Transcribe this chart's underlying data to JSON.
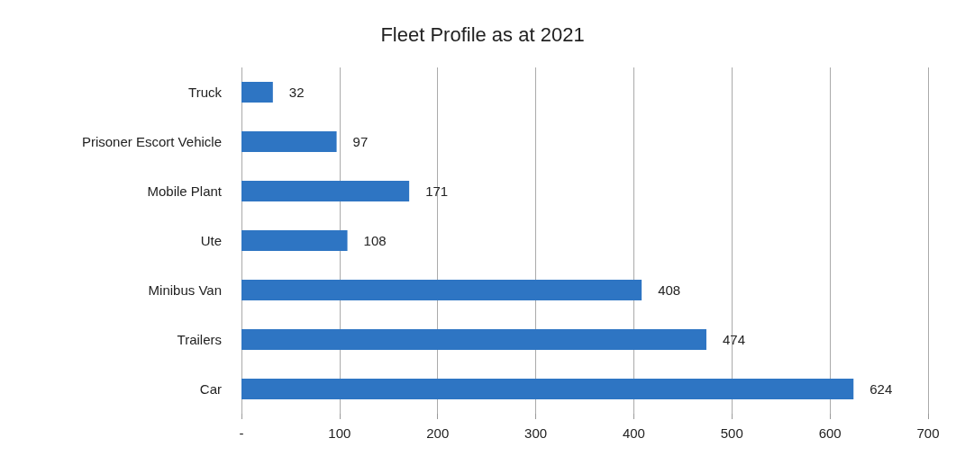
{
  "chart_data": {
    "type": "bar",
    "orientation": "horizontal",
    "title": "Fleet Profile as at 2021",
    "categories": [
      "Truck",
      "Prisoner Escort Vehicle",
      "Mobile Plant",
      "Ute",
      "Minibus Van",
      "Trailers",
      "Car"
    ],
    "values": [
      32,
      97,
      171,
      108,
      408,
      474,
      624
    ],
    "color": "#2e75c3",
    "xlim": [
      0,
      700
    ],
    "xticks": [
      {
        "value": 0,
        "label": "-"
      },
      100,
      200,
      300,
      400,
      500,
      600,
      700
    ],
    "grid": "x",
    "data_labels": true
  }
}
